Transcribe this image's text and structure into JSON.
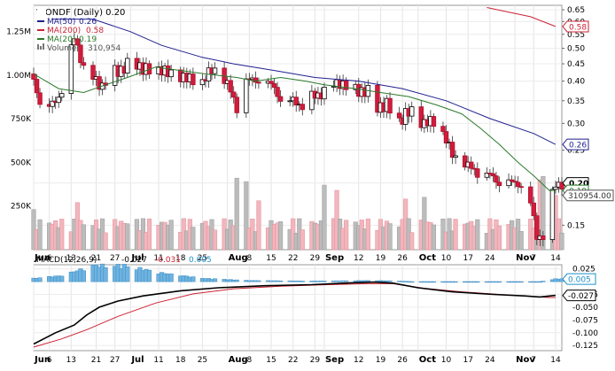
{
  "chart_data": [
    {
      "type": "candlestick",
      "title": "WONDF (Daily) 0.20",
      "y_scale": "log",
      "ylim": [
        0.127,
        0.67
      ],
      "y_ticks": [
        0.65,
        0.6,
        0.55,
        0.5,
        0.45,
        0.4,
        0.35,
        0.3,
        0.25,
        0.2,
        0.15
      ],
      "x_labels": [
        {
          "label": "Jun",
          "bold": true,
          "day": 1
        },
        {
          "label": "6",
          "bold": false,
          "day": 6
        },
        {
          "label": "13",
          "bold": false,
          "day": 13
        },
        {
          "label": "21",
          "bold": false,
          "day": 21
        },
        {
          "label": "27",
          "bold": false,
          "day": 27
        },
        {
          "label": "Jul",
          "bold": true,
          "day": 32
        },
        {
          "label": "11",
          "bold": false,
          "day": 41
        },
        {
          "label": "18",
          "bold": false,
          "day": 48
        },
        {
          "label": "25",
          "bold": false,
          "day": 55
        },
        {
          "label": "Aug",
          "bold": true,
          "day": 63
        },
        {
          "label": "8",
          "bold": false,
          "day": 70
        },
        {
          "label": "15",
          "bold": false,
          "day": 77
        },
        {
          "label": "22",
          "bold": false,
          "day": 84
        },
        {
          "label": "29",
          "bold": false,
          "day": 91
        },
        {
          "label": "Sep",
          "bold": true,
          "day": 94
        },
        {
          "label": "12",
          "bold": false,
          "day": 105
        },
        {
          "label": "19",
          "bold": false,
          "day": 112
        },
        {
          "label": "26",
          "bold": false,
          "day": 119
        },
        {
          "label": "Oct",
          "bold": true,
          "day": 124
        },
        {
          "label": "10",
          "bold": false,
          "day": 133
        },
        {
          "label": "17",
          "bold": false,
          "day": 140
        },
        {
          "label": "24",
          "bold": false,
          "day": 147
        },
        {
          "label": "Nov",
          "bold": true,
          "day": 155
        },
        {
          "label": "7",
          "bold": false,
          "day": 161
        },
        {
          "label": "14",
          "bold": false,
          "day": 168
        }
      ],
      "legend": [
        {
          "label": "MA(50)",
          "value": "0.26",
          "color": "#1f1f8f"
        },
        {
          "label": "MA(200)",
          "value": "0.58",
          "color": "#cc2233"
        },
        {
          "label": "MA(20)",
          "value": "0.19",
          "color": "#2a7a2a"
        },
        {
          "label": "Volume",
          "value": "310,954",
          "color": "#555555"
        }
      ],
      "price_badges": [
        {
          "value": "0.58",
          "at": 0.58,
          "color": "#cc2233"
        },
        {
          "value": "0.26",
          "at": 0.26,
          "color": "#1f1f8f"
        },
        {
          "value": "0.20",
          "at": 0.2,
          "color": "#000000",
          "bold": true
        },
        {
          "value": "0.19",
          "at": 0.19,
          "color": "#2a7a2a"
        }
      ],
      "ma50_points": [
        [
          7,
          0.61
        ],
        [
          20,
          0.61
        ],
        [
          32,
          0.56
        ],
        [
          42,
          0.51
        ],
        [
          55,
          0.47
        ],
        [
          65,
          0.45
        ],
        [
          78,
          0.43
        ],
        [
          91,
          0.41
        ],
        [
          105,
          0.4
        ],
        [
          119,
          0.38
        ],
        [
          133,
          0.35
        ],
        [
          147,
          0.31
        ],
        [
          161,
          0.28
        ],
        [
          168,
          0.26
        ]
      ],
      "ma200_points": [
        [
          146,
          0.66
        ],
        [
          160,
          0.62
        ],
        [
          168,
          0.58
        ]
      ],
      "ma20_points": [
        [
          1,
          0.42
        ],
        [
          9,
          0.38
        ],
        [
          17,
          0.37
        ],
        [
          24,
          0.39
        ],
        [
          31,
          0.41
        ],
        [
          40,
          0.44
        ],
        [
          48,
          0.43
        ],
        [
          56,
          0.42
        ],
        [
          66,
          0.41
        ],
        [
          72,
          0.4
        ],
        [
          80,
          0.41
        ],
        [
          88,
          0.4
        ],
        [
          94,
          0.39
        ],
        [
          104,
          0.38
        ],
        [
          112,
          0.37
        ],
        [
          121,
          0.36
        ],
        [
          130,
          0.34
        ],
        [
          138,
          0.32
        ],
        [
          144,
          0.29
        ],
        [
          150,
          0.26
        ],
        [
          156,
          0.23
        ],
        [
          161,
          0.21
        ],
        [
          166,
          0.19
        ],
        [
          168,
          0.19
        ]
      ],
      "anchors": [
        [
          1,
          0.42,
          0.4
        ],
        [
          4,
          0.41,
          0.32
        ],
        [
          7,
          0.32,
          0.34
        ],
        [
          9,
          0.34,
          0.36
        ],
        [
          11,
          0.36,
          0.4
        ],
        [
          14,
          0.4,
          0.54
        ],
        [
          17,
          0.54,
          0.44
        ],
        [
          20,
          0.44,
          0.41
        ],
        [
          23,
          0.41,
          0.39
        ],
        [
          27,
          0.39,
          0.43
        ],
        [
          30,
          0.43,
          0.44
        ],
        [
          33,
          0.44,
          0.46
        ],
        [
          36,
          0.46,
          0.44
        ],
        [
          39,
          0.44,
          0.42
        ],
        [
          42,
          0.42,
          0.44
        ],
        [
          45,
          0.44,
          0.41
        ],
        [
          48,
          0.41,
          0.42
        ],
        [
          51,
          0.42,
          0.4
        ],
        [
          54,
          0.4,
          0.39
        ],
        [
          57,
          0.39,
          0.42
        ],
        [
          60,
          0.42,
          0.43
        ],
        [
          63,
          0.43,
          0.39
        ],
        [
          66,
          0.39,
          0.33
        ],
        [
          69,
          0.33,
          0.4
        ],
        [
          72,
          0.4,
          0.4
        ],
        [
          75,
          0.4,
          0.4
        ],
        [
          78,
          0.4,
          0.38
        ],
        [
          81,
          0.38,
          0.34
        ],
        [
          84,
          0.34,
          0.35
        ],
        [
          87,
          0.35,
          0.34
        ],
        [
          90,
          0.34,
          0.36
        ],
        [
          93,
          0.36,
          0.37
        ],
        [
          96,
          0.37,
          0.39
        ],
        [
          99,
          0.39,
          0.4
        ],
        [
          102,
          0.4,
          0.38
        ],
        [
          105,
          0.38,
          0.38
        ],
        [
          108,
          0.38,
          0.37
        ],
        [
          111,
          0.37,
          0.34
        ],
        [
          114,
          0.34,
          0.34
        ],
        [
          117,
          0.34,
          0.3
        ],
        [
          120,
          0.3,
          0.32
        ],
        [
          123,
          0.32,
          0.32
        ],
        [
          126,
          0.32,
          0.3
        ],
        [
          129,
          0.3,
          0.3
        ],
        [
          132,
          0.3,
          0.28
        ],
        [
          135,
          0.28,
          0.24
        ],
        [
          138,
          0.24,
          0.23
        ],
        [
          141,
          0.23,
          0.22
        ],
        [
          144,
          0.22,
          0.21
        ],
        [
          147,
          0.21,
          0.21
        ],
        [
          150,
          0.21,
          0.2
        ],
        [
          153,
          0.2,
          0.2
        ],
        [
          156,
          0.2,
          0.2
        ],
        [
          159,
          0.2,
          0.19
        ],
        [
          162,
          0.19,
          0.14
        ],
        [
          164,
          0.14,
          0.14
        ],
        [
          166,
          0.14,
          0.17
        ],
        [
          168,
          0.17,
          0.2
        ]
      ]
    },
    {
      "type": "bar",
      "title": "",
      "ylim": [
        0,
        1400000
      ],
      "y_ticks": [
        {
          "label": "1.25M",
          "value": 1250000
        },
        {
          "label": "1.00M",
          "value": 1000000
        },
        {
          "label": "750K",
          "value": 750000
        },
        {
          "label": "500K",
          "value": 500000
        },
        {
          "label": "250K",
          "value": 250000
        }
      ],
      "last_value_badge": "310954.00",
      "last_value": 310954,
      "spikes": [
        [
          1,
          230000
        ],
        [
          12,
          300000
        ],
        [
          15,
          270000
        ],
        [
          66,
          410000
        ],
        [
          69,
          390000
        ],
        [
          73,
          280000
        ],
        [
          94,
          370000
        ],
        [
          98,
          340000
        ],
        [
          109,
          300000
        ],
        [
          120,
          290000
        ],
        [
          126,
          300000
        ],
        [
          145,
          330000
        ],
        [
          151,
          350000
        ],
        [
          159,
          270000
        ],
        [
          163,
          400000
        ],
        [
          164,
          420000
        ],
        [
          165,
          560000
        ],
        [
          166,
          880000
        ],
        [
          168,
          310954
        ]
      ],
      "base_level": 170000
    },
    {
      "type": "line",
      "title": "MACD(12,26,9)",
      "legend": [
        {
          "label": "MACD(12,26,9)",
          "value": "-0.027",
          "color": "#000000"
        },
        {
          "label": "",
          "value": "-0.031",
          "color": "#cc2233"
        },
        {
          "label": "",
          "value": "0.005",
          "color": "#1e90c8"
        }
      ],
      "ylim": [
        -0.135,
        0.033
      ],
      "y_ticks": [
        0.025,
        0.0,
        -0.025,
        -0.05,
        -0.075,
        -0.1,
        -0.125
      ],
      "badges": [
        {
          "value": "0.005",
          "at": 0.005,
          "color": "#1e90c8"
        },
        {
          "value": "-0.027",
          "at": -0.027,
          "color": "#000000"
        }
      ],
      "macd_points": [
        [
          1,
          -0.122
        ],
        [
          8,
          -0.1
        ],
        [
          14,
          -0.085
        ],
        [
          18,
          -0.065
        ],
        [
          22,
          -0.05
        ],
        [
          28,
          -0.038
        ],
        [
          36,
          -0.028
        ],
        [
          48,
          -0.018
        ],
        [
          60,
          -0.012
        ],
        [
          75,
          -0.008
        ],
        [
          90,
          -0.006
        ],
        [
          100,
          -0.003
        ],
        [
          110,
          -0.001
        ],
        [
          116,
          -0.003
        ],
        [
          124,
          -0.012
        ],
        [
          135,
          -0.02
        ],
        [
          148,
          -0.025
        ],
        [
          158,
          -0.028
        ],
        [
          163,
          -0.03
        ],
        [
          168,
          -0.027
        ]
      ],
      "signal_points": [
        [
          1,
          -0.128
        ],
        [
          10,
          -0.112
        ],
        [
          18,
          -0.094
        ],
        [
          28,
          -0.068
        ],
        [
          40,
          -0.042
        ],
        [
          52,
          -0.024
        ],
        [
          65,
          -0.014
        ],
        [
          80,
          -0.009
        ],
        [
          95,
          -0.006
        ],
        [
          108,
          -0.004
        ],
        [
          116,
          -0.004
        ],
        [
          126,
          -0.013
        ],
        [
          138,
          -0.02
        ],
        [
          150,
          -0.025
        ],
        [
          160,
          -0.029
        ],
        [
          166,
          -0.031
        ],
        [
          168,
          -0.031
        ]
      ],
      "histogram_points": [
        [
          1,
          0.006
        ],
        [
          10,
          0.011
        ],
        [
          20,
          0.03
        ],
        [
          30,
          0.03
        ],
        [
          42,
          0.016
        ],
        [
          55,
          0.006
        ],
        [
          70,
          0.002
        ],
        [
          90,
          0.001
        ],
        [
          110,
          0.002
        ],
        [
          118,
          0.001
        ],
        [
          126,
          -0.001
        ],
        [
          140,
          -0.001
        ],
        [
          155,
          -0.001
        ],
        [
          162,
          -0.001
        ],
        [
          168,
          0.005
        ]
      ]
    }
  ]
}
